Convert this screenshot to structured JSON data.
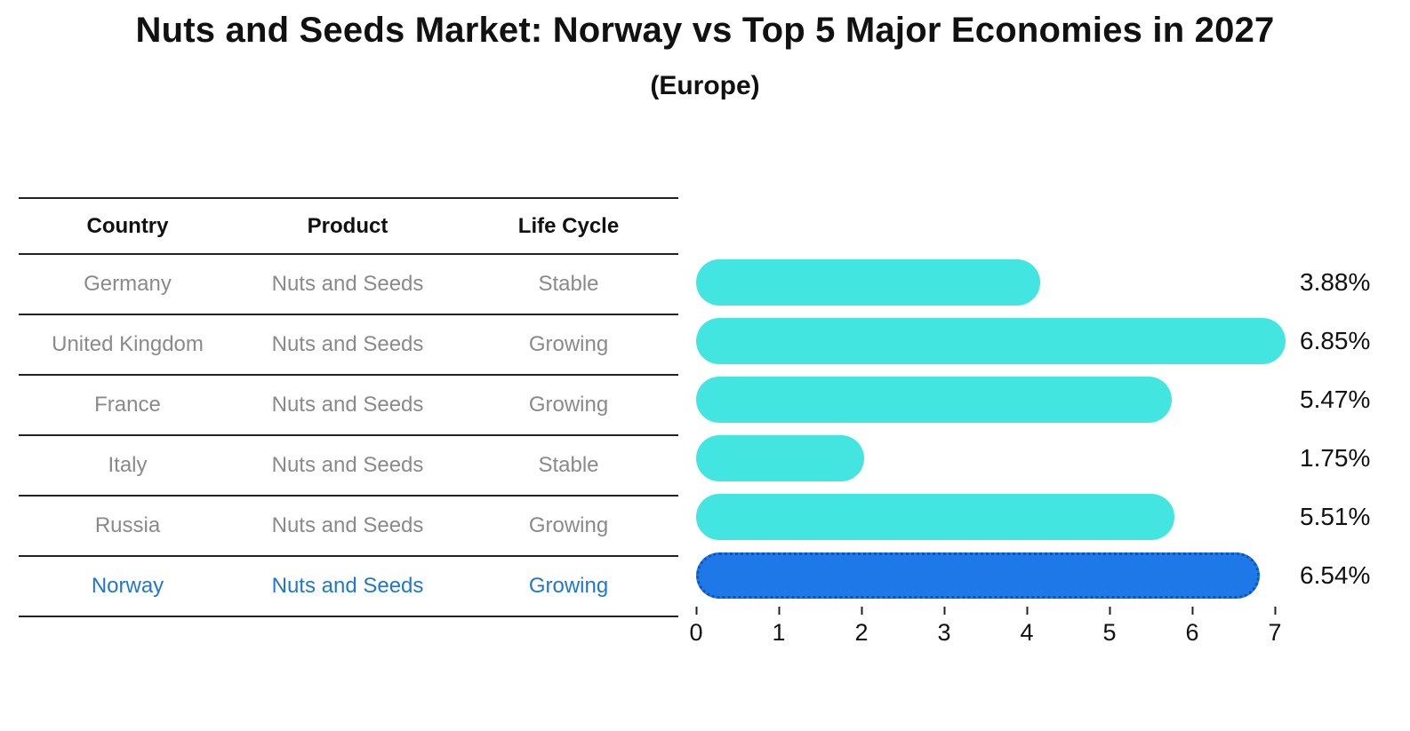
{
  "title": "Nuts and Seeds Market: Norway vs Top 5 Major Economies in 2027",
  "subtitle": "(Europe)",
  "table": {
    "headers": {
      "country": "Country",
      "product": "Product",
      "life_cycle": "Life Cycle"
    }
  },
  "chart_data": {
    "type": "bar",
    "orientation": "horizontal",
    "title": "Nuts and Seeds Market: Norway vs Top 5 Major Economies in 2027",
    "subtitle": "(Europe)",
    "xlim": [
      0,
      7
    ],
    "x_ticks": [
      "0",
      "1",
      "2",
      "3",
      "4",
      "5",
      "6",
      "7"
    ],
    "grid": false,
    "bar_color": "#42e5e0",
    "highlight_color": "#1e78e8",
    "highlight_text_color": "#1f77d4",
    "rows": [
      {
        "country": "Germany",
        "product": "Nuts and Seeds",
        "life_cycle": "Stable",
        "value": 3.88,
        "value_label": "3.88%",
        "highlight": false
      },
      {
        "country": "United Kingdom",
        "product": "Nuts and Seeds",
        "life_cycle": "Growing",
        "value": 6.85,
        "value_label": "6.85%",
        "highlight": false
      },
      {
        "country": "France",
        "product": "Nuts and Seeds",
        "life_cycle": "Growing",
        "value": 5.47,
        "value_label": "5.47%",
        "highlight": false
      },
      {
        "country": "Italy",
        "product": "Nuts and Seeds",
        "life_cycle": "Stable",
        "value": 1.75,
        "value_label": "1.75%",
        "highlight": false
      },
      {
        "country": "Russia",
        "product": "Nuts and Seeds",
        "life_cycle": "Growing",
        "value": 5.51,
        "value_label": "5.51%",
        "highlight": false
      },
      {
        "country": "Norway",
        "product": "Nuts and Seeds",
        "life_cycle": "Growing",
        "value": 6.54,
        "value_label": "6.54%",
        "highlight": true
      }
    ]
  }
}
